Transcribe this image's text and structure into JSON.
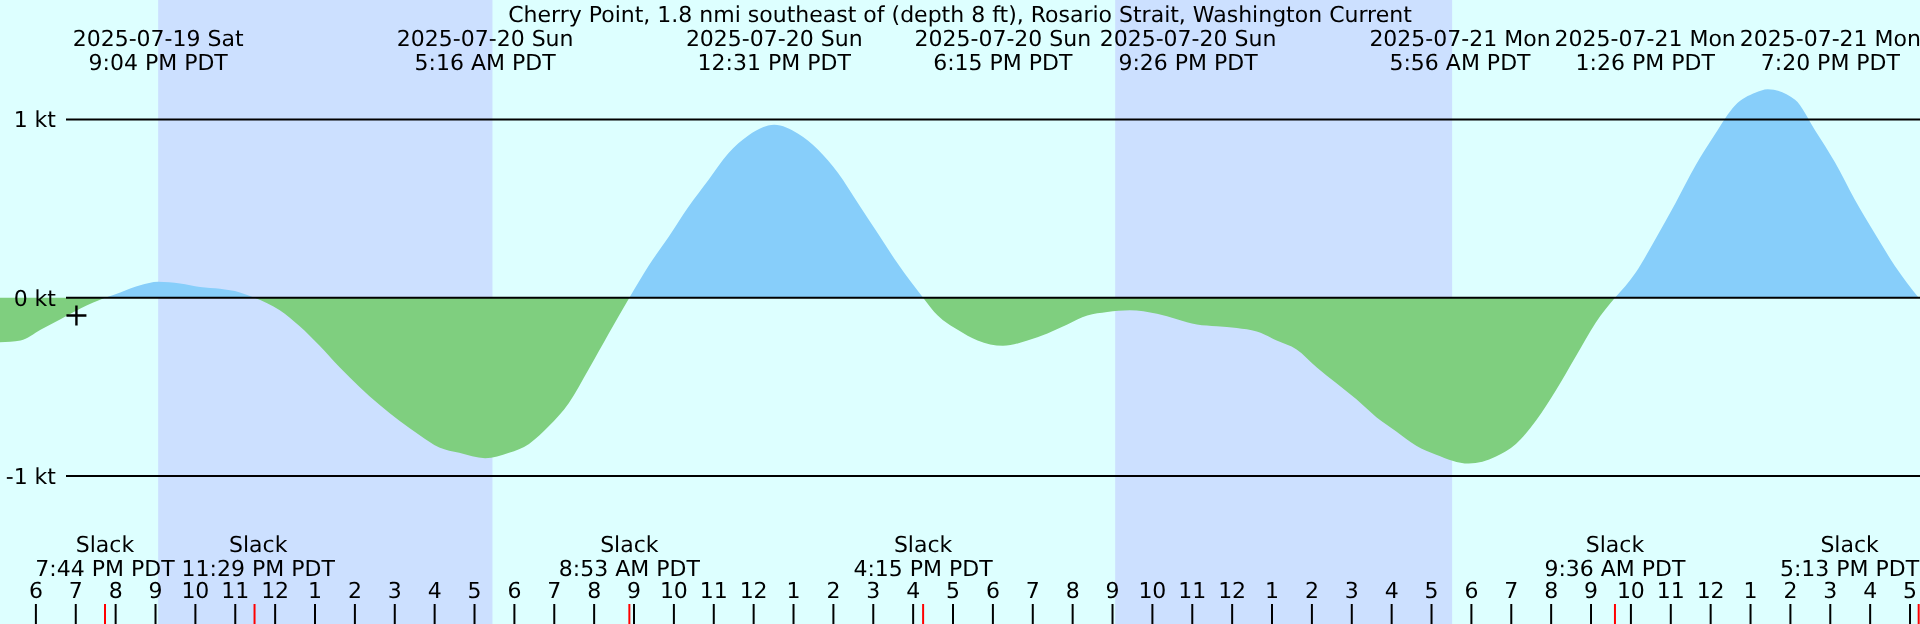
{
  "chart_data": {
    "type": "area",
    "title": "Cherry Point, 1.8 nmi southeast of (depth 8 ft), Rosario Strait, Washington Current",
    "x": [
      "2025-07-19T17:06",
      "2025-07-19T17:37",
      "2025-07-19T18:07",
      "2025-07-19T18:37",
      "2025-07-19T19:07",
      "2025-07-19T19:44",
      "2025-07-19T20:07",
      "2025-07-19T20:37",
      "2025-07-19T21:04",
      "2025-07-19T21:37",
      "2025-07-19T22:07",
      "2025-07-19T22:37",
      "2025-07-19T23:07",
      "2025-07-19T23:29",
      "2025-07-20T00:07",
      "2025-07-20T00:37",
      "2025-07-20T01:07",
      "2025-07-20T01:37",
      "2025-07-20T02:07",
      "2025-07-20T02:37",
      "2025-07-20T03:07",
      "2025-07-20T03:37",
      "2025-07-20T04:07",
      "2025-07-20T04:37",
      "2025-07-20T05:16",
      "2025-07-20T05:52",
      "2025-07-20T06:22",
      "2025-07-20T06:52",
      "2025-07-20T07:22",
      "2025-07-20T07:52",
      "2025-07-20T08:22",
      "2025-07-20T08:53",
      "2025-07-20T09:22",
      "2025-07-20T09:52",
      "2025-07-20T10:22",
      "2025-07-20T10:52",
      "2025-07-20T11:22",
      "2025-07-20T11:52",
      "2025-07-20T12:31",
      "2025-07-20T13:07",
      "2025-07-20T13:37",
      "2025-07-20T14:07",
      "2025-07-20T14:37",
      "2025-07-20T15:07",
      "2025-07-20T15:37",
      "2025-07-20T16:15",
      "2025-07-20T16:37",
      "2025-07-20T17:07",
      "2025-07-20T17:37",
      "2025-07-20T18:15",
      "2025-07-20T18:52",
      "2025-07-20T19:22",
      "2025-07-20T19:52",
      "2025-07-20T20:22",
      "2025-07-20T20:52",
      "2025-07-20T21:26",
      "2025-07-20T22:07",
      "2025-07-20T22:37",
      "2025-07-20T23:07",
      "2025-07-20T23:37",
      "2025-07-21T00:07",
      "2025-07-21T00:37",
      "2025-07-21T01:07",
      "2025-07-21T01:37",
      "2025-07-21T02:07",
      "2025-07-21T02:37",
      "2025-07-21T03:07",
      "2025-07-21T03:37",
      "2025-07-21T04:07",
      "2025-07-21T04:37",
      "2025-07-21T05:07",
      "2025-07-21T05:56",
      "2025-07-21T06:37",
      "2025-07-21T07:07",
      "2025-07-21T07:37",
      "2025-07-21T08:07",
      "2025-07-21T08:37",
      "2025-07-21T09:07",
      "2025-07-21T09:36",
      "2025-07-21T10:07",
      "2025-07-21T10:37",
      "2025-07-21T11:07",
      "2025-07-21T11:37",
      "2025-07-21T12:07",
      "2025-07-21T12:37",
      "2025-07-21T13:07",
      "2025-07-21T13:26",
      "2025-07-21T14:07",
      "2025-07-21T14:37",
      "2025-07-21T15:07",
      "2025-07-21T15:37",
      "2025-07-21T16:07",
      "2025-07-21T16:37",
      "2025-07-21T17:13"
    ],
    "series": [
      {
        "color": "#87cefa",
        "values": [
          null,
          null,
          null,
          null,
          null,
          0,
          0.03,
          0.07,
          0.09,
          0.08,
          0.06,
          0.05,
          0.03,
          0,
          null,
          null,
          null,
          null,
          null,
          null,
          null,
          null,
          null,
          null,
          null,
          null,
          null,
          null,
          null,
          null,
          null,
          0,
          0.18,
          0.34,
          0.51,
          0.66,
          0.81,
          0.91,
          0.97,
          0.92,
          0.83,
          0.7,
          0.53,
          0.36,
          0.19,
          0,
          null,
          null,
          null,
          null,
          null,
          null,
          null,
          null,
          null,
          null,
          null,
          null,
          null,
          null,
          null,
          null,
          null,
          null,
          null,
          null,
          null,
          null,
          null,
          null,
          null,
          null,
          null,
          null,
          null,
          null,
          null,
          null,
          0,
          0.14,
          0.33,
          0.53,
          0.74,
          0.92,
          1.08,
          1.15,
          1.17,
          1.11,
          0.94,
          0.76,
          0.55,
          0.36,
          0.18,
          0
        ]
      },
      {
        "color": "#7fcf7f",
        "values": [
          -0.25,
          -0.24,
          -0.18,
          -0.12,
          -0.06,
          0,
          null,
          null,
          null,
          null,
          null,
          null,
          null,
          0,
          -0.07,
          -0.16,
          -0.27,
          -0.39,
          -0.5,
          -0.6,
          -0.69,
          -0.77,
          -0.84,
          -0.87,
          -0.9,
          -0.87,
          -0.82,
          -0.72,
          -0.59,
          -0.4,
          -0.2,
          0,
          null,
          null,
          null,
          null,
          null,
          null,
          null,
          null,
          null,
          null,
          null,
          null,
          null,
          0,
          -0.1,
          -0.18,
          -0.24,
          -0.27,
          -0.24,
          -0.2,
          -0.15,
          -0.1,
          -0.08,
          -0.07,
          -0.09,
          -0.12,
          -0.15,
          -0.16,
          -0.17,
          -0.19,
          -0.24,
          -0.29,
          -0.39,
          -0.48,
          -0.57,
          -0.67,
          -0.75,
          -0.83,
          -0.88,
          -0.93,
          -0.89,
          -0.82,
          -0.69,
          -0.52,
          -0.33,
          -0.14,
          0,
          null,
          null,
          null,
          null,
          null,
          null,
          null,
          null,
          null,
          null,
          null,
          null,
          null,
          null,
          null
        ]
      },
      {
        "type": "scatter",
        "x": [
          "2025-07-19T19:01"
        ],
        "values": [
          -0.1
        ],
        "color": "#000000",
        "marker": "cross"
      }
    ],
    "xlim": [
      "2025-07-19T17:06",
      "2025-07-21T17:15"
    ],
    "xticks": [
      {
        "value": "2025-07-19T18:00",
        "label": "6"
      },
      {
        "value": "2025-07-19T19:00",
        "label": "7"
      },
      {
        "value": "2025-07-19T20:00",
        "label": "8"
      },
      {
        "value": "2025-07-19T21:00",
        "label": "9"
      },
      {
        "value": "2025-07-19T22:00",
        "label": "10"
      },
      {
        "value": "2025-07-19T23:00",
        "label": "11"
      },
      {
        "value": "2025-07-20T00:00",
        "label": "12"
      },
      {
        "value": "2025-07-20T01:00",
        "label": "1"
      },
      {
        "value": "2025-07-20T02:00",
        "label": "2"
      },
      {
        "value": "2025-07-20T03:00",
        "label": "3"
      },
      {
        "value": "2025-07-20T04:00",
        "label": "4"
      },
      {
        "value": "2025-07-20T05:00",
        "label": "5"
      },
      {
        "value": "2025-07-20T06:00",
        "label": "6"
      },
      {
        "value": "2025-07-20T07:00",
        "label": "7"
      },
      {
        "value": "2025-07-20T08:00",
        "label": "8"
      },
      {
        "value": "2025-07-20T09:00",
        "label": "9"
      },
      {
        "value": "2025-07-20T10:00",
        "label": "10"
      },
      {
        "value": "2025-07-20T11:00",
        "label": "11"
      },
      {
        "value": "2025-07-20T12:00",
        "label": "12"
      },
      {
        "value": "2025-07-20T13:00",
        "label": "1"
      },
      {
        "value": "2025-07-20T14:00",
        "label": "2"
      },
      {
        "value": "2025-07-20T15:00",
        "label": "3"
      },
      {
        "value": "2025-07-20T16:00",
        "label": "4"
      },
      {
        "value": "2025-07-20T17:00",
        "label": "5"
      },
      {
        "value": "2025-07-20T18:00",
        "label": "6"
      },
      {
        "value": "2025-07-20T19:00",
        "label": "7"
      },
      {
        "value": "2025-07-20T20:00",
        "label": "8"
      },
      {
        "value": "2025-07-20T21:00",
        "label": "9"
      },
      {
        "value": "2025-07-20T22:00",
        "label": "10"
      },
      {
        "value": "2025-07-20T23:00",
        "label": "11"
      },
      {
        "value": "2025-07-21T00:00",
        "label": "12"
      },
      {
        "value": "2025-07-21T01:00",
        "label": "1"
      },
      {
        "value": "2025-07-21T02:00",
        "label": "2"
      },
      {
        "value": "2025-07-21T03:00",
        "label": "3"
      },
      {
        "value": "2025-07-21T04:00",
        "label": "4"
      },
      {
        "value": "2025-07-21T05:00",
        "label": "5"
      },
      {
        "value": "2025-07-21T06:00",
        "label": "6"
      },
      {
        "value": "2025-07-21T07:00",
        "label": "7"
      },
      {
        "value": "2025-07-21T08:00",
        "label": "8"
      },
      {
        "value": "2025-07-21T09:00",
        "label": "9"
      },
      {
        "value": "2025-07-21T10:00",
        "label": "10"
      },
      {
        "value": "2025-07-21T11:00",
        "label": "11"
      },
      {
        "value": "2025-07-21T12:00",
        "label": "12"
      },
      {
        "value": "2025-07-21T13:00",
        "label": "1"
      },
      {
        "value": "2025-07-21T14:00",
        "label": "2"
      },
      {
        "value": "2025-07-21T15:00",
        "label": "3"
      },
      {
        "value": "2025-07-21T16:00",
        "label": "4"
      },
      {
        "value": "2025-07-21T17:00",
        "label": "5"
      }
    ],
    "ylim": [
      -1.83,
      1.67
    ],
    "yticks": [
      {
        "value": -1,
        "label": "-1 kt"
      },
      {
        "value": 0,
        "label": "0 kt"
      },
      {
        "value": 1,
        "label": "1 kt"
      }
    ],
    "grid": "y",
    "bands": [
      {
        "axis": "x",
        "from": "2025-07-19T21:04",
        "to": "2025-07-20T05:27",
        "color": "#cce0ff"
      },
      {
        "axis": "x",
        "from": "2025-07-20T21:04",
        "to": "2025-07-21T05:31",
        "color": "#cce0ff"
      }
    ],
    "annotations": [
      "2025-07-19 Sat\n9:04 PM PDT",
      "2025-07-20 Sun\n5:16 AM PDT",
      "2025-07-20 Sun\n12:31 PM PDT",
      "2025-07-20 Sun\n6:15 PM PDT",
      "2025-07-20 Sun\n9:26 PM PDT",
      "2025-07-21 Mon\n5:56 AM PDT",
      "2025-07-21 Mon\n1:26 PM PDT",
      "2025-07-21 Mon\n7:20 PM PDT",
      "Slack\n7:44 PM PDT",
      "Slack\n11:29 PM PDT",
      "Slack\n8:53 AM PDT",
      "Slack\n4:15 PM PDT",
      "Slack\n9:36 AM PDT",
      "Slack\n5:13 PM PDT"
    ]
  }
}
